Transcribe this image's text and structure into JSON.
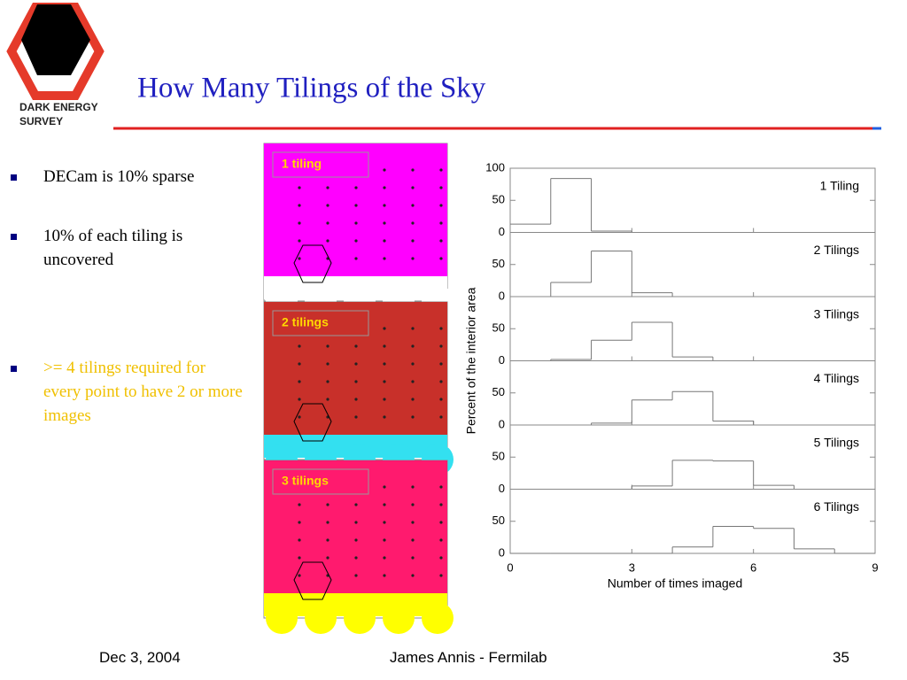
{
  "logo": {
    "line1": "DARK ENERGY",
    "line2": "SURVEY"
  },
  "slide": {
    "title": "How Many Tilings of the Sky",
    "bullets": [
      "DECam is 10% sparse",
      "10% of each tiling is uncovered",
      ">= 4 tilings required for every point to have 2 or more images"
    ],
    "footer": {
      "date": "Dec 3, 2004",
      "author": "James Annis - Fermilab",
      "page": "35"
    }
  },
  "images": [
    {
      "label": "1 tiling"
    },
    {
      "label": "2 tilings"
    },
    {
      "label": "3 tilings"
    }
  ],
  "figure": {
    "x_label": "Number of times imaged",
    "y_label": "Percent of the interior area",
    "xlim": [
      0,
      9
    ],
    "xticks": [
      0,
      3,
      6,
      9
    ]
  },
  "chart_data": [
    {
      "type": "histogram",
      "title": "1 Tiling",
      "bins": [
        0,
        1,
        2,
        3,
        4,
        5,
        6,
        7,
        8,
        9
      ],
      "values": [
        13,
        84,
        2,
        0,
        0,
        0,
        0,
        0,
        0
      ],
      "ylim": [
        0,
        100
      ],
      "yticks": [
        0,
        50,
        100
      ],
      "color": "#777777"
    },
    {
      "type": "histogram",
      "title": "2 Tilings",
      "bins": [
        0,
        1,
        2,
        3,
        4,
        5,
        6,
        7,
        8,
        9
      ],
      "values": [
        0,
        22,
        71,
        6,
        0,
        0,
        0,
        0,
        0
      ],
      "ylim": [
        0,
        100
      ],
      "yticks": [
        0,
        50
      ],
      "color": "#777777"
    },
    {
      "type": "histogram",
      "title": "3 Tilings",
      "bins": [
        0,
        1,
        2,
        3,
        4,
        5,
        6,
        7,
        8,
        9
      ],
      "values": [
        0,
        2,
        32,
        60,
        6,
        0,
        0,
        0,
        0
      ],
      "ylim": [
        0,
        100
      ],
      "yticks": [
        0,
        50
      ],
      "color": "#777777"
    },
    {
      "type": "histogram",
      "title": "4 Tilings",
      "bins": [
        0,
        1,
        2,
        3,
        4,
        5,
        6,
        7,
        8,
        9
      ],
      "values": [
        0,
        0,
        3,
        39,
        52,
        6,
        0,
        0,
        0
      ],
      "ylim": [
        0,
        100
      ],
      "yticks": [
        0,
        50
      ],
      "color": "#777777"
    },
    {
      "type": "histogram",
      "title": "5 Tilings",
      "bins": [
        0,
        1,
        2,
        3,
        4,
        5,
        6,
        7,
        8,
        9
      ],
      "values": [
        0,
        0,
        0,
        5,
        45,
        44,
        6,
        0,
        0
      ],
      "ylim": [
        0,
        100
      ],
      "yticks": [
        0,
        50
      ],
      "color": "#777777"
    },
    {
      "type": "histogram",
      "title": "6 Tilings",
      "bins": [
        0,
        1,
        2,
        3,
        4,
        5,
        6,
        7,
        8,
        9
      ],
      "values": [
        0,
        0,
        0,
        0,
        10,
        42,
        39,
        7,
        0
      ],
      "ylim": [
        0,
        100
      ],
      "yticks": [
        0,
        50
      ],
      "color": "#777777"
    }
  ]
}
